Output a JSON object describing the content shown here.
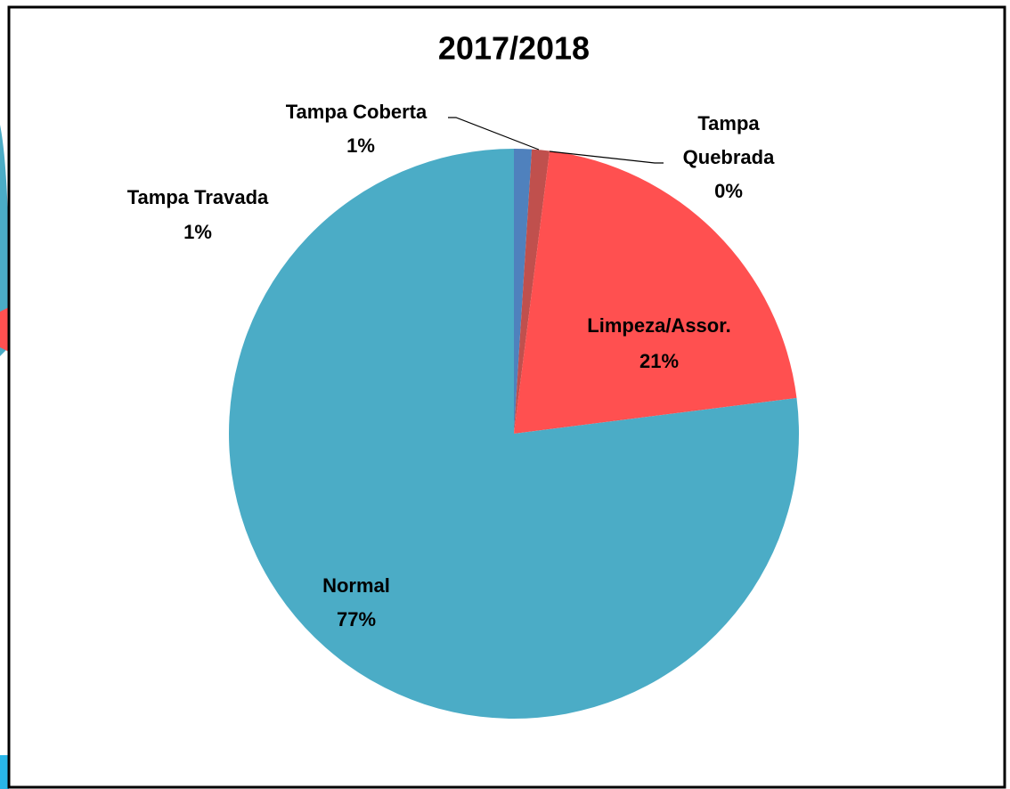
{
  "chart_data": {
    "type": "pie",
    "title": "2017/2018",
    "categories": [
      "Tampa Travada",
      "Tampa Coberta",
      "Tampa Quebrada",
      "Limpeza/Assor.",
      "Normal"
    ],
    "values": [
      1,
      1,
      0,
      21,
      77
    ],
    "value_labels": [
      "1%",
      "1%",
      "0%",
      "21%",
      "77%"
    ],
    "colors": [
      "#4f81bd",
      "#c0504d",
      "#9bbb59",
      "#ff5050",
      "#4bacc6"
    ]
  }
}
